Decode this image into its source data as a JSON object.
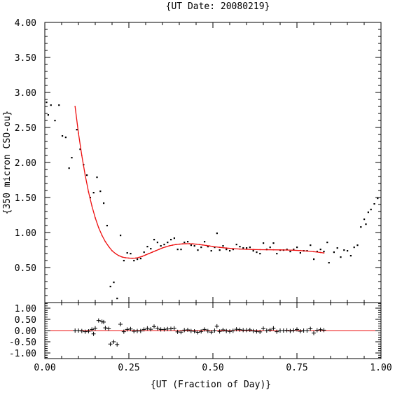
{
  "title": "{UT Date: 20080219}",
  "xlabel": "{UT (Fraction of Day)}",
  "ylabel": "{350 micron CSO-ou}",
  "colors": {
    "fit": "#ee1111",
    "points": "#000000",
    "axes": "#000000"
  },
  "chart_data": [
    {
      "type": "scatter",
      "panel": "main",
      "xlim": [
        0,
        1
      ],
      "ylim": [
        0,
        4
      ],
      "xticks": [
        "0.00",
        "0.25",
        "0.50",
        "0.75",
        "1.00"
      ],
      "yticks": [
        "0.50",
        "1.00",
        "1.50",
        "2.00",
        "2.50",
        "3.00",
        "3.50",
        "4.00"
      ],
      "grid": false,
      "series": [
        {
          "kind": "points",
          "points": [
            [
              0.005,
              2.86
            ],
            [
              0.01,
              2.68
            ],
            [
              0.018,
              2.82
            ],
            [
              0.03,
              2.6
            ],
            [
              0.042,
              2.82
            ],
            [
              0.052,
              2.38
            ],
            [
              0.062,
              2.36
            ],
            [
              0.072,
              1.92
            ],
            [
              0.08,
              2.07
            ],
            [
              0.095,
              2.47
            ],
            [
              0.105,
              2.19
            ],
            [
              0.115,
              1.97
            ],
            [
              0.125,
              1.82
            ],
            [
              0.135,
              1.5
            ],
            [
              0.145,
              1.57
            ],
            [
              0.155,
              1.79
            ],
            [
              0.165,
              1.59
            ],
            [
              0.175,
              1.42
            ],
            [
              0.185,
              1.1
            ],
            [
              0.195,
              0.23
            ],
            [
              0.205,
              0.29
            ],
            [
              0.215,
              0.06
            ],
            [
              0.225,
              0.96
            ],
            [
              0.235,
              0.6
            ],
            [
              0.245,
              0.71
            ],
            [
              0.255,
              0.7
            ],
            [
              0.265,
              0.6
            ],
            [
              0.275,
              0.62
            ],
            [
              0.285,
              0.63
            ],
            [
              0.295,
              0.72
            ],
            [
              0.305,
              0.8
            ],
            [
              0.315,
              0.77
            ],
            [
              0.325,
              0.9
            ],
            [
              0.335,
              0.86
            ],
            [
              0.345,
              0.81
            ],
            [
              0.355,
              0.83
            ],
            [
              0.365,
              0.86
            ],
            [
              0.375,
              0.9
            ],
            [
              0.385,
              0.92
            ],
            [
              0.395,
              0.76
            ],
            [
              0.405,
              0.76
            ],
            [
              0.415,
              0.86
            ],
            [
              0.425,
              0.87
            ],
            [
              0.435,
              0.82
            ],
            [
              0.445,
              0.81
            ],
            [
              0.455,
              0.75
            ],
            [
              0.465,
              0.79
            ],
            [
              0.475,
              0.87
            ],
            [
              0.485,
              0.8
            ],
            [
              0.495,
              0.74
            ],
            [
              0.505,
              0.79
            ],
            [
              0.512,
              0.99
            ],
            [
              0.52,
              0.75
            ],
            [
              0.53,
              0.81
            ],
            [
              0.54,
              0.76
            ],
            [
              0.55,
              0.74
            ],
            [
              0.56,
              0.76
            ],
            [
              0.57,
              0.83
            ],
            [
              0.58,
              0.8
            ],
            [
              0.59,
              0.78
            ],
            [
              0.6,
              0.78
            ],
            [
              0.61,
              0.79
            ],
            [
              0.62,
              0.74
            ],
            [
              0.63,
              0.72
            ],
            [
              0.64,
              0.7
            ],
            [
              0.65,
              0.85
            ],
            [
              0.66,
              0.76
            ],
            [
              0.67,
              0.79
            ],
            [
              0.68,
              0.85
            ],
            [
              0.69,
              0.7
            ],
            [
              0.7,
              0.75
            ],
            [
              0.71,
              0.75
            ],
            [
              0.72,
              0.76
            ],
            [
              0.73,
              0.73
            ],
            [
              0.74,
              0.76
            ],
            [
              0.75,
              0.79
            ],
            [
              0.76,
              0.71
            ],
            [
              0.77,
              0.74
            ],
            [
              0.78,
              0.74
            ],
            [
              0.79,
              0.82
            ],
            [
              0.8,
              0.62
            ],
            [
              0.81,
              0.73
            ],
            [
              0.82,
              0.76
            ],
            [
              0.83,
              0.73
            ],
            [
              0.84,
              0.86
            ],
            [
              0.845,
              0.57
            ],
            [
              0.86,
              0.72
            ],
            [
              0.87,
              0.78
            ],
            [
              0.88,
              0.65
            ],
            [
              0.89,
              0.75
            ],
            [
              0.9,
              0.74
            ],
            [
              0.91,
              0.67
            ],
            [
              0.92,
              0.79
            ],
            [
              0.93,
              0.82
            ],
            [
              0.94,
              1.08
            ],
            [
              0.95,
              1.19
            ],
            [
              0.955,
              1.12
            ],
            [
              0.962,
              1.29
            ],
            [
              0.97,
              1.33
            ],
            [
              0.98,
              1.41
            ],
            [
              0.99,
              1.49
            ]
          ]
        },
        {
          "kind": "fit",
          "points": [
            [
              0.09,
              2.8
            ],
            [
              0.1,
              2.42
            ],
            [
              0.11,
              2.1
            ],
            [
              0.12,
              1.82
            ],
            [
              0.13,
              1.58
            ],
            [
              0.14,
              1.38
            ],
            [
              0.15,
              1.21
            ],
            [
              0.16,
              1.07
            ],
            [
              0.17,
              0.96
            ],
            [
              0.18,
              0.87
            ],
            [
              0.19,
              0.8
            ],
            [
              0.2,
              0.74
            ],
            [
              0.21,
              0.7
            ],
            [
              0.22,
              0.67
            ],
            [
              0.23,
              0.65
            ],
            [
              0.24,
              0.64
            ],
            [
              0.25,
              0.635
            ],
            [
              0.26,
              0.632
            ],
            [
              0.27,
              0.635
            ],
            [
              0.28,
              0.645
            ],
            [
              0.29,
              0.66
            ],
            [
              0.3,
              0.68
            ],
            [
              0.31,
              0.7
            ],
            [
              0.32,
              0.72
            ],
            [
              0.33,
              0.74
            ],
            [
              0.34,
              0.76
            ],
            [
              0.35,
              0.78
            ],
            [
              0.36,
              0.795
            ],
            [
              0.37,
              0.81
            ],
            [
              0.38,
              0.82
            ],
            [
              0.39,
              0.828
            ],
            [
              0.4,
              0.834
            ],
            [
              0.41,
              0.838
            ],
            [
              0.42,
              0.84
            ],
            [
              0.43,
              0.84
            ],
            [
              0.44,
              0.838
            ],
            [
              0.45,
              0.834
            ],
            [
              0.46,
              0.828
            ],
            [
              0.47,
              0.822
            ],
            [
              0.48,
              0.815
            ],
            [
              0.49,
              0.808
            ],
            [
              0.5,
              0.8
            ],
            [
              0.52,
              0.788
            ],
            [
              0.54,
              0.778
            ],
            [
              0.56,
              0.77
            ],
            [
              0.58,
              0.764
            ],
            [
              0.6,
              0.76
            ],
            [
              0.62,
              0.757
            ],
            [
              0.64,
              0.755
            ],
            [
              0.66,
              0.754
            ],
            [
              0.68,
              0.753
            ],
            [
              0.7,
              0.752
            ],
            [
              0.72,
              0.75
            ],
            [
              0.74,
              0.747
            ],
            [
              0.76,
              0.742
            ],
            [
              0.78,
              0.735
            ],
            [
              0.8,
              0.726
            ],
            [
              0.82,
              0.715
            ],
            [
              0.83,
              0.708
            ]
          ]
        }
      ]
    },
    {
      "type": "scatter",
      "panel": "residuals",
      "xlim": [
        0,
        1
      ],
      "ylim": [
        -1.25,
        1.25
      ],
      "xticks": [
        "0.00",
        "0.25",
        "0.50",
        "0.75",
        "1.00"
      ],
      "yticks": [
        "1.00",
        "0.50",
        "0.00",
        "-0.50",
        "-1.00"
      ],
      "zero_line": true,
      "series": [
        {
          "kind": "residuals",
          "points": [
            [
              0.09,
              0.0
            ],
            [
              0.1,
              0.0
            ],
            [
              0.11,
              -0.02
            ],
            [
              0.12,
              -0.05
            ],
            [
              0.13,
              -0.03
            ],
            [
              0.14,
              0.05
            ],
            [
              0.145,
              -0.15
            ],
            [
              0.15,
              0.1
            ],
            [
              0.16,
              0.45
            ],
            [
              0.17,
              0.4
            ],
            [
              0.175,
              0.38
            ],
            [
              0.18,
              0.12
            ],
            [
              0.19,
              0.08
            ],
            [
              0.195,
              -0.6
            ],
            [
              0.205,
              -0.5
            ],
            [
              0.215,
              -0.62
            ],
            [
              0.225,
              0.28
            ],
            [
              0.235,
              -0.05
            ],
            [
              0.245,
              0.05
            ],
            [
              0.255,
              0.07
            ],
            [
              0.265,
              -0.03
            ],
            [
              0.275,
              -0.02
            ],
            [
              0.285,
              -0.02
            ],
            [
              0.295,
              0.05
            ],
            [
              0.305,
              0.1
            ],
            [
              0.315,
              0.06
            ],
            [
              0.325,
              0.18
            ],
            [
              0.335,
              0.1
            ],
            [
              0.345,
              0.05
            ],
            [
              0.355,
              0.05
            ],
            [
              0.365,
              0.07
            ],
            [
              0.375,
              0.08
            ],
            [
              0.385,
              0.1
            ],
            [
              0.395,
              -0.06
            ],
            [
              0.405,
              -0.07
            ],
            [
              0.415,
              0.02
            ],
            [
              0.425,
              0.03
            ],
            [
              0.435,
              -0.02
            ],
            [
              0.445,
              -0.03
            ],
            [
              0.455,
              -0.08
            ],
            [
              0.465,
              -0.04
            ],
            [
              0.475,
              0.05
            ],
            [
              0.485,
              -0.02
            ],
            [
              0.495,
              -0.07
            ],
            [
              0.505,
              0.0
            ],
            [
              0.512,
              0.19
            ],
            [
              0.52,
              -0.04
            ],
            [
              0.53,
              0.03
            ],
            [
              0.54,
              -0.02
            ],
            [
              0.55,
              -0.04
            ],
            [
              0.56,
              -0.01
            ],
            [
              0.57,
              0.06
            ],
            [
              0.58,
              0.04
            ],
            [
              0.59,
              0.02
            ],
            [
              0.6,
              0.02
            ],
            [
              0.61,
              0.03
            ],
            [
              0.62,
              -0.02
            ],
            [
              0.63,
              -0.04
            ],
            [
              0.64,
              -0.06
            ],
            [
              0.65,
              0.09
            ],
            [
              0.66,
              0.0
            ],
            [
              0.67,
              0.03
            ],
            [
              0.68,
              0.1
            ],
            [
              0.69,
              -0.05
            ],
            [
              0.7,
              0.0
            ],
            [
              0.71,
              0.0
            ],
            [
              0.72,
              0.01
            ],
            [
              0.73,
              -0.02
            ],
            [
              0.74,
              0.01
            ],
            [
              0.75,
              0.05
            ],
            [
              0.76,
              -0.03
            ],
            [
              0.77,
              0.0
            ],
            [
              0.78,
              0.0
            ],
            [
              0.79,
              0.08
            ],
            [
              0.8,
              -0.11
            ],
            [
              0.81,
              0.01
            ],
            [
              0.82,
              0.04
            ],
            [
              0.83,
              0.02
            ]
          ]
        }
      ]
    }
  ]
}
